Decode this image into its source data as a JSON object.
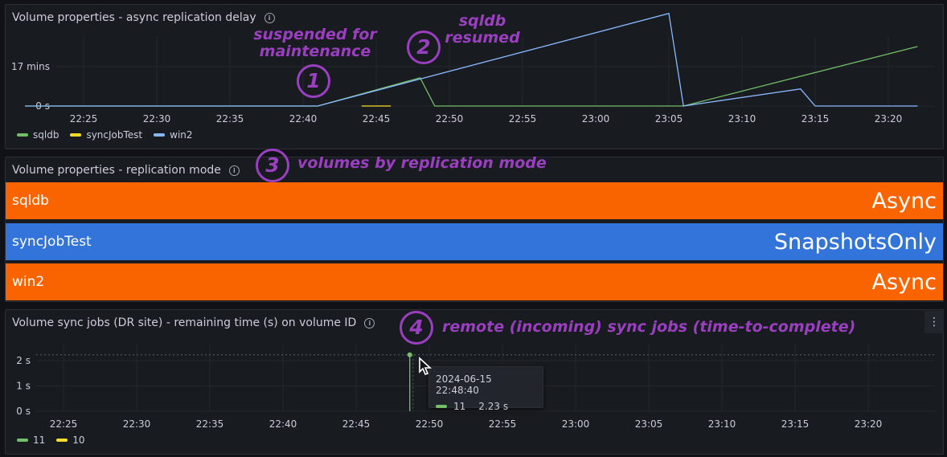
{
  "colors": {
    "sqldb": "#73bf69",
    "syncJobTest": "#fade2a",
    "win2": "#8ab8ff",
    "async_bg": "#fa6400",
    "snapshots_bg": "#3274d9",
    "annotation": "#9a3fbf"
  },
  "panel1": {
    "title": "Volume properties - async replication delay",
    "info_icon": "info-icon",
    "y_ticks": [
      "17 mins",
      "0 s"
    ],
    "x_ticks": [
      "22:25",
      "22:30",
      "22:35",
      "22:40",
      "22:45",
      "22:50",
      "22:55",
      "23:00",
      "23:05",
      "23:10",
      "23:15",
      "23:20"
    ],
    "legend": [
      "sqldb",
      "syncJobTest",
      "win2"
    ]
  },
  "panel2": {
    "title": "Volume properties - replication mode",
    "info_icon": "info-icon",
    "rows": [
      {
        "name": "sqldb",
        "value": "Async"
      },
      {
        "name": "syncJobTest",
        "value": "SnapshotsOnly"
      },
      {
        "name": "win2",
        "value": "Async"
      }
    ]
  },
  "panel3": {
    "title": "Volume sync jobs (DR site) - remaining time (s) on volume ID",
    "info_icon": "info-icon",
    "menu_icon": "kebab-menu-icon",
    "y_ticks": [
      "2 s",
      "1 s",
      "0 s"
    ],
    "x_ticks": [
      "22:25",
      "22:30",
      "22:35",
      "22:40",
      "22:45",
      "22:50",
      "22:55",
      "23:00",
      "23:05",
      "23:10",
      "23:15",
      "23:20"
    ],
    "legend": [
      "11",
      "10"
    ],
    "tooltip": {
      "time": "2024-06-15 22:48:40",
      "series": "11",
      "value": "2.23 s"
    }
  },
  "annotations": {
    "n1": "1",
    "n2": "2",
    "n3": "3",
    "n4": "4",
    "a1_line1": "suspended for",
    "a1_line2": "maintenance",
    "a2_line1": "sqldb",
    "a2_line2": "resumed",
    "a3": "volumes by replication mode",
    "a4": "remote (incoming) sync jobs (time-to-complete)"
  },
  "chart_data": [
    {
      "type": "line",
      "title": "Volume properties - async replication delay",
      "x_unit": "time",
      "y_unit": "minutes",
      "ylim": [
        0,
        27
      ],
      "grid": true,
      "legend_position": "bottom-left",
      "series": [
        {
          "name": "sqldb",
          "points": [
            [
              "22:21",
              0
            ],
            [
              "22:41",
              0
            ],
            [
              "22:48",
              12.2
            ],
            [
              "22:49",
              0
            ],
            [
              "23:06",
              0
            ],
            [
              "23:22",
              25.7
            ]
          ]
        },
        {
          "name": "syncJobTest",
          "points": [
            [
              "22:44",
              0
            ],
            [
              "22:46",
              0
            ]
          ]
        },
        {
          "name": "win2",
          "points": [
            [
              "22:21",
              0
            ],
            [
              "22:41",
              0
            ],
            [
              "23:05",
              40.0
            ],
            [
              "23:06",
              0
            ],
            [
              "23:14",
              7.4
            ],
            [
              "23:15",
              0
            ],
            [
              "23:22",
              0
            ]
          ]
        }
      ]
    },
    {
      "type": "line",
      "title": "Volume sync jobs (DR site) - remaining time (s) on volume ID",
      "x_unit": "time",
      "y_unit": "seconds",
      "ylim": [
        0,
        2.5
      ],
      "grid": true,
      "legend_position": "bottom-left",
      "series": [
        {
          "name": "11",
          "points": [
            [
              "22:48:40",
              2.23
            ]
          ]
        },
        {
          "name": "10",
          "points": []
        }
      ]
    }
  ]
}
